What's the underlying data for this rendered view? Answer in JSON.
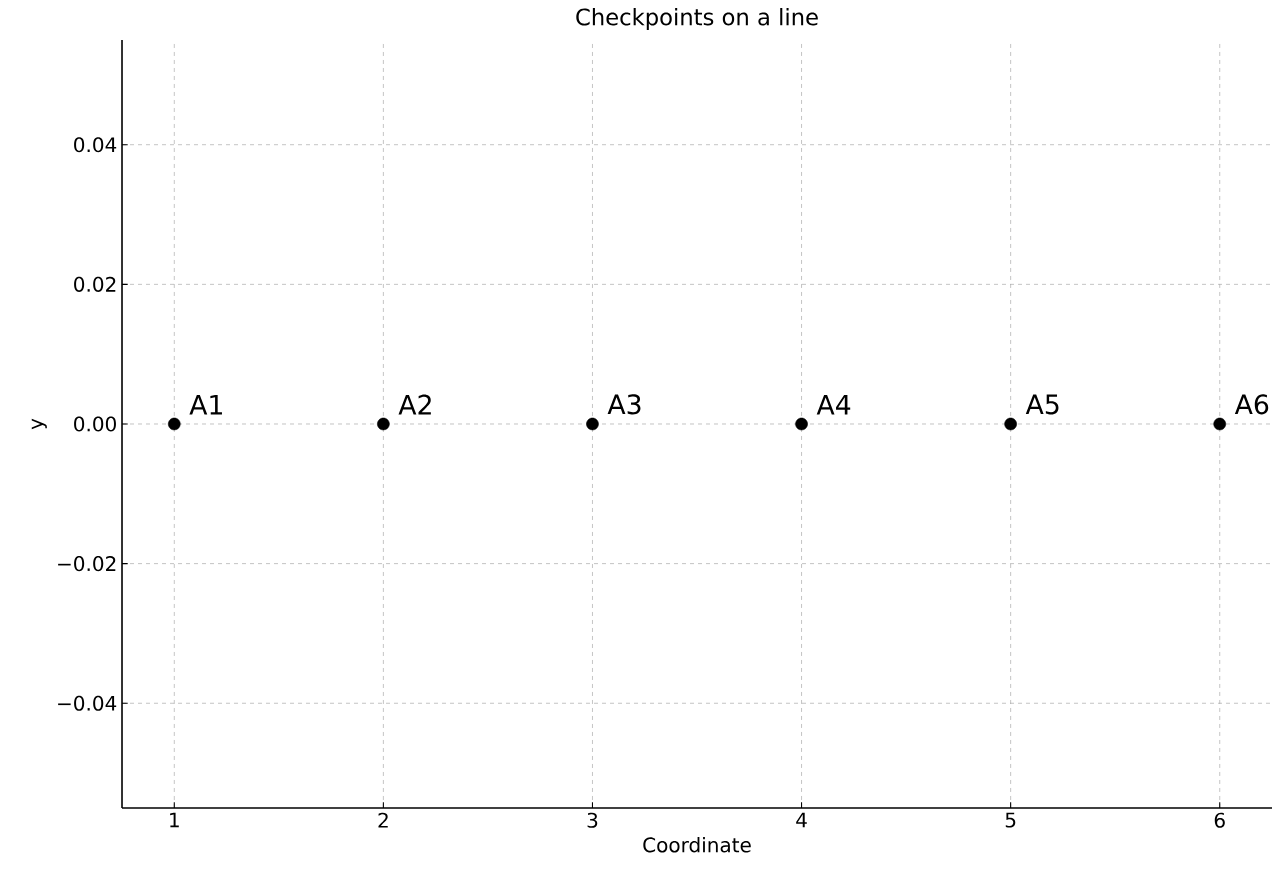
{
  "chart_data": {
    "type": "scatter",
    "title": "Checkpoints on a line",
    "xlabel": "Coordinate",
    "ylabel": "y",
    "x": [
      1,
      2,
      3,
      4,
      5,
      6
    ],
    "values": [
      0,
      0,
      0,
      0,
      0,
      0
    ],
    "color": "#000000",
    "marker": "circle",
    "annotations": [
      {
        "text": "A1",
        "x": 1,
        "y": 0
      },
      {
        "text": "A2",
        "x": 2,
        "y": 0
      },
      {
        "text": "A3",
        "x": 3,
        "y": 0
      },
      {
        "text": "A4",
        "x": 4,
        "y": 0
      },
      {
        "text": "A5",
        "x": 5,
        "y": 0
      },
      {
        "text": "A6",
        "x": 6,
        "y": 0
      }
    ],
    "xlim": [
      0.75,
      6.25
    ],
    "ylim": [
      -0.055,
      0.055
    ],
    "xticks": [
      1,
      2,
      3,
      4,
      5,
      6
    ],
    "yticks": [
      {
        "value": -0.04,
        "label": "−0.04"
      },
      {
        "value": -0.02,
        "label": "−0.02"
      },
      {
        "value": 0,
        "label": "0.00"
      },
      {
        "value": 0.02,
        "label": "0.02"
      },
      {
        "value": 0.04,
        "label": "0.04"
      }
    ],
    "grid": true
  }
}
